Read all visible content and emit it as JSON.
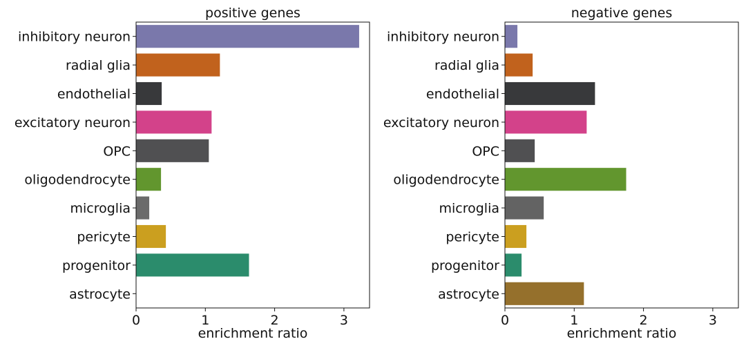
{
  "chart_data": [
    {
      "type": "bar",
      "orientation": "horizontal",
      "title": "positive genes",
      "xlabel": "enrichment ratio",
      "ylabel": "",
      "xlim": [
        0,
        3.37
      ],
      "xticks": [
        0,
        1,
        2,
        3
      ],
      "categories": [
        "inhibitory neuron",
        "radial glia",
        "endothelial",
        "excitatory neuron",
        "OPC",
        "oligodendrocyte",
        "microglia",
        "pericyte",
        "progenitor",
        "astrocyte"
      ],
      "values": [
        3.22,
        1.21,
        0.37,
        1.09,
        1.05,
        0.36,
        0.19,
        0.43,
        1.63,
        0.0
      ],
      "colors": [
        "#7a78ab",
        "#c1621d",
        "#38393b",
        "#d3428a",
        "#505052",
        "#62962e",
        "#6b6b6b",
        "#cb9f1f",
        "#2b8c6c",
        "#a0a0a0"
      ],
      "grid": false,
      "legend": "none"
    },
    {
      "type": "bar",
      "orientation": "horizontal",
      "title": "negative genes",
      "xlabel": "enrichment ratio",
      "ylabel": "",
      "xlim": [
        0,
        3.37
      ],
      "xticks": [
        0,
        1,
        2,
        3
      ],
      "categories": [
        "inhibitory neuron",
        "radial glia",
        "endothelial",
        "excitatory neuron",
        "OPC",
        "oligodendrocyte",
        "microglia",
        "pericyte",
        "progenitor",
        "astrocyte"
      ],
      "values": [
        0.18,
        0.4,
        1.3,
        1.18,
        0.43,
        1.75,
        0.56,
        0.31,
        0.24,
        1.14
      ],
      "colors": [
        "#7a78ab",
        "#c1621d",
        "#38393b",
        "#d3428a",
        "#505052",
        "#62962e",
        "#636363",
        "#cb9f1f",
        "#2b8c6c",
        "#95702c"
      ],
      "grid": false,
      "legend": "none"
    }
  ]
}
